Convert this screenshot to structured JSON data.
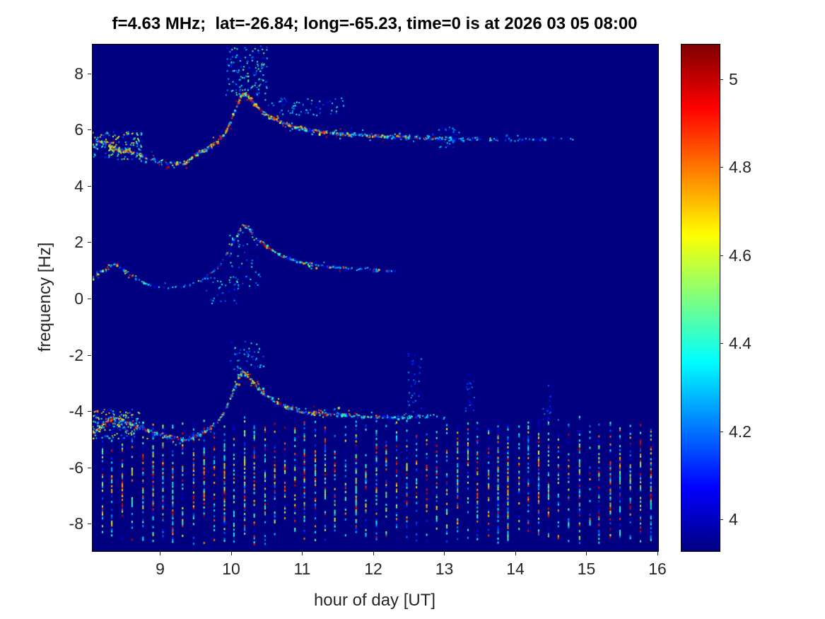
{
  "chart_data": {
    "type": "heatmap",
    "title": "f=4.63 MHz;  lat=-26.84; long=-65.23, time=0 is at 2026 03 05 08:00",
    "xlabel": "hour of day [UT]",
    "ylabel": "frequency [Hz]",
    "xlim": [
      8.04,
      16.0
    ],
    "ylim": [
      -8.95,
      9.05
    ],
    "x_ticks": [
      9,
      10,
      11,
      12,
      13,
      14,
      15,
      16
    ],
    "y_ticks": [
      8,
      6,
      4,
      2,
      0,
      -2,
      -4,
      -6,
      -8
    ],
    "grid": false,
    "colorbar": {
      "position": "right",
      "colormap": "jet",
      "clim": [
        3.93,
        5.08
      ],
      "ticks": [
        4,
        4.2,
        4.4,
        4.6,
        4.8,
        5
      ]
    },
    "background_value": 3.93,
    "traces": [
      {
        "name": "upper-doppler-trace",
        "jitter": 0.09,
        "density": 330,
        "points": [
          [
            8.04,
            5.45
          ],
          [
            8.15,
            5.6
          ],
          [
            8.25,
            5.55
          ],
          [
            8.35,
            5.35
          ],
          [
            8.45,
            5.25
          ],
          [
            8.6,
            5.2
          ],
          [
            8.75,
            5.1
          ],
          [
            8.9,
            4.95
          ],
          [
            9.05,
            4.85
          ],
          [
            9.2,
            4.8
          ],
          [
            9.35,
            4.85
          ],
          [
            9.5,
            5.15
          ],
          [
            9.65,
            5.35
          ],
          [
            9.8,
            5.6
          ],
          [
            9.9,
            5.85
          ],
          [
            10.0,
            6.4
          ],
          [
            10.08,
            6.95
          ],
          [
            10.15,
            7.3
          ],
          [
            10.22,
            7.25
          ],
          [
            10.3,
            7.0
          ],
          [
            10.4,
            6.7
          ],
          [
            10.55,
            6.45
          ],
          [
            10.7,
            6.3
          ],
          [
            10.9,
            6.1
          ],
          [
            11.1,
            6.0
          ],
          [
            11.4,
            5.9
          ],
          [
            11.7,
            5.85
          ],
          [
            12.0,
            5.8
          ],
          [
            12.4,
            5.78
          ],
          [
            12.8,
            5.72
          ],
          [
            13.2,
            5.7
          ],
          [
            13.6,
            5.7
          ],
          [
            14.0,
            5.68
          ],
          [
            14.4,
            5.68
          ],
          [
            14.8,
            5.7
          ]
        ],
        "hot": [
          [
            8.04,
            0.55
          ],
          [
            8.3,
            0.75
          ],
          [
            8.5,
            0.6
          ],
          [
            8.8,
            0.35
          ],
          [
            9.2,
            0.3
          ],
          [
            9.5,
            0.6
          ],
          [
            9.8,
            0.7
          ],
          [
            10.0,
            0.75
          ],
          [
            10.15,
            0.8
          ],
          [
            10.4,
            0.75
          ],
          [
            10.8,
            0.6
          ],
          [
            11.2,
            0.5
          ],
          [
            11.8,
            0.45
          ],
          [
            12.4,
            0.4
          ],
          [
            12.9,
            0.3
          ],
          [
            13.2,
            0.12
          ],
          [
            13.8,
            0.07
          ],
          [
            14.4,
            0.05
          ],
          [
            14.8,
            0.03
          ]
        ]
      },
      {
        "name": "middle-doppler-trace",
        "jitter": 0.08,
        "density": 230,
        "points": [
          [
            8.04,
            0.75
          ],
          [
            8.15,
            0.95
          ],
          [
            8.25,
            1.1
          ],
          [
            8.35,
            1.25
          ],
          [
            8.45,
            1.1
          ],
          [
            8.55,
            0.9
          ],
          [
            8.7,
            0.65
          ],
          [
            8.85,
            0.5
          ],
          [
            9.0,
            0.42
          ],
          [
            9.15,
            0.4
          ],
          [
            9.4,
            0.5
          ],
          [
            9.6,
            0.7
          ],
          [
            9.8,
            1.1
          ],
          [
            9.95,
            1.7
          ],
          [
            10.05,
            2.2
          ],
          [
            10.15,
            2.65
          ],
          [
            10.25,
            2.45
          ],
          [
            10.35,
            2.15
          ],
          [
            10.5,
            1.85
          ],
          [
            10.65,
            1.6
          ],
          [
            10.8,
            1.45
          ],
          [
            11.0,
            1.3
          ],
          [
            11.2,
            1.2
          ],
          [
            11.5,
            1.12
          ],
          [
            11.8,
            1.08
          ],
          [
            12.1,
            1.02
          ],
          [
            12.3,
            1.0
          ]
        ],
        "hot": [
          [
            8.04,
            0.35
          ],
          [
            8.3,
            0.5
          ],
          [
            8.6,
            0.3
          ],
          [
            9.0,
            0.1
          ],
          [
            9.3,
            0.05
          ],
          [
            9.6,
            0.15
          ],
          [
            9.9,
            0.3
          ],
          [
            10.15,
            0.45
          ],
          [
            10.4,
            0.5
          ],
          [
            10.7,
            0.45
          ],
          [
            11.0,
            0.4
          ],
          [
            11.4,
            0.3
          ],
          [
            11.8,
            0.25
          ],
          [
            12.3,
            0.12
          ]
        ]
      },
      {
        "name": "lower-doppler-trace",
        "jitter": 0.1,
        "density": 300,
        "points": [
          [
            8.04,
            -4.75
          ],
          [
            8.15,
            -4.55
          ],
          [
            8.25,
            -4.35
          ],
          [
            8.35,
            -4.2
          ],
          [
            8.45,
            -4.3
          ],
          [
            8.6,
            -4.45
          ],
          [
            8.75,
            -4.6
          ],
          [
            8.9,
            -4.75
          ],
          [
            9.05,
            -4.85
          ],
          [
            9.2,
            -4.95
          ],
          [
            9.35,
            -5.0
          ],
          [
            9.5,
            -4.85
          ],
          [
            9.65,
            -4.65
          ],
          [
            9.8,
            -4.35
          ],
          [
            9.9,
            -4.0
          ],
          [
            10.0,
            -3.4
          ],
          [
            10.08,
            -2.9
          ],
          [
            10.15,
            -2.55
          ],
          [
            10.25,
            -2.8
          ],
          [
            10.35,
            -3.1
          ],
          [
            10.5,
            -3.45
          ],
          [
            10.65,
            -3.7
          ],
          [
            10.8,
            -3.85
          ],
          [
            11.0,
            -4.0
          ],
          [
            11.2,
            -4.05
          ],
          [
            11.5,
            -4.1
          ],
          [
            11.8,
            -4.15
          ],
          [
            12.1,
            -4.2
          ],
          [
            12.4,
            -4.2
          ],
          [
            12.7,
            -4.15
          ],
          [
            13.0,
            -4.2
          ]
        ],
        "hot": [
          [
            8.04,
            0.55
          ],
          [
            8.3,
            0.7
          ],
          [
            8.5,
            0.65
          ],
          [
            8.8,
            0.45
          ],
          [
            9.2,
            0.35
          ],
          [
            9.5,
            0.4
          ],
          [
            9.8,
            0.55
          ],
          [
            10.0,
            0.65
          ],
          [
            10.15,
            0.8
          ],
          [
            10.35,
            0.65
          ],
          [
            10.6,
            0.55
          ],
          [
            10.9,
            0.5
          ],
          [
            11.3,
            0.45
          ],
          [
            11.8,
            0.35
          ],
          [
            12.3,
            0.22
          ],
          [
            12.7,
            0.13
          ],
          [
            13.0,
            0.07
          ]
        ]
      }
    ],
    "stripes": {
      "comment": "periodic vertical interference lines in lower band",
      "x_start": 8.17,
      "x_end": 15.9,
      "spacing": 0.143,
      "y_bottom": -8.7,
      "y_top": -4.45,
      "hot_center": -6.4,
      "hot_sigma": 1.6
    },
    "clouds": [
      {
        "x0": 9.92,
        "x1": 10.5,
        "y0": 7.2,
        "y1": 9.0,
        "count": 160,
        "v_lo": 3.97,
        "v_hi": 4.55
      },
      {
        "x0": 10.4,
        "x1": 11.6,
        "y0": 6.5,
        "y1": 7.15,
        "count": 90,
        "v_lo": 3.97,
        "v_hi": 4.5
      },
      {
        "x0": 8.04,
        "x1": 8.75,
        "y0": 4.95,
        "y1": 5.95,
        "count": 160,
        "v_lo": 4.0,
        "v_hi": 4.75
      },
      {
        "x0": 9.95,
        "x1": 10.4,
        "y0": 0.3,
        "y1": 2.6,
        "count": 70,
        "v_lo": 3.97,
        "v_hi": 4.5
      },
      {
        "x0": 9.6,
        "x1": 10.1,
        "y0": -0.2,
        "y1": 0.9,
        "count": 45,
        "v_lo": 3.97,
        "v_hi": 4.4
      },
      {
        "x0": 9.98,
        "x1": 10.45,
        "y0": -2.55,
        "y1": -1.5,
        "count": 55,
        "v_lo": 3.97,
        "v_hi": 4.45
      },
      {
        "x0": 8.04,
        "x1": 8.7,
        "y0": -4.95,
        "y1": -3.9,
        "count": 170,
        "v_lo": 4.0,
        "v_hi": 4.8
      },
      {
        "x0": 12.48,
        "x1": 12.68,
        "y0": -4.3,
        "y1": -1.9,
        "count": 45,
        "v_lo": 3.96,
        "v_hi": 4.3
      },
      {
        "x0": 12.9,
        "x1": 13.2,
        "y0": 5.35,
        "y1": 6.15,
        "count": 35,
        "v_lo": 3.96,
        "v_hi": 4.35
      },
      {
        "x0": 13.28,
        "x1": 13.42,
        "y0": -4.4,
        "y1": -2.6,
        "count": 25,
        "v_lo": 3.96,
        "v_hi": 4.25
      },
      {
        "x0": 14.38,
        "x1": 14.52,
        "y0": -4.5,
        "y1": -3.0,
        "count": 22,
        "v_lo": 3.96,
        "v_hi": 4.25
      }
    ],
    "colors": {
      "figure_background": "#ffffff",
      "plot_background": "#00008f",
      "axis_text": "#262626",
      "title_text": "#000000"
    }
  }
}
